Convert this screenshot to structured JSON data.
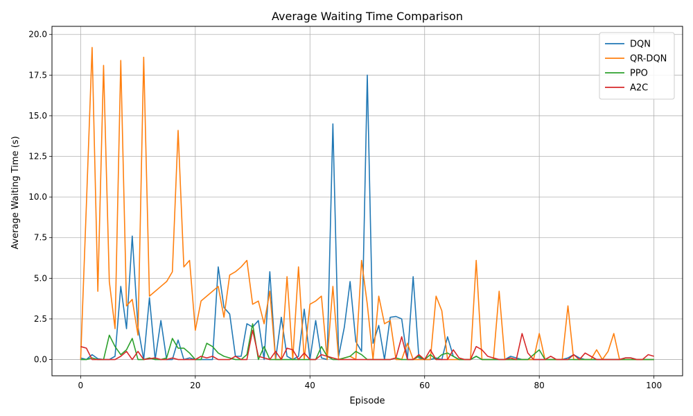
{
  "chart_data": {
    "type": "line",
    "title": "Average Waiting Time Comparison",
    "xlabel": "Episode",
    "ylabel": "Average Waiting Time (s)",
    "xlim": [
      -5,
      105
    ],
    "ylim": [
      -1.0,
      20.5
    ],
    "xticks": [
      0,
      20,
      40,
      60,
      80,
      100
    ],
    "yticks": [
      0.0,
      2.5,
      5.0,
      7.5,
      10.0,
      12.5,
      15.0,
      17.5,
      20.0
    ],
    "xtick_labels": [
      "0",
      "20",
      "40",
      "60",
      "80",
      "100"
    ],
    "ytick_labels": [
      "0.0",
      "2.5",
      "5.0",
      "7.5",
      "10.0",
      "12.5",
      "15.0",
      "17.5",
      "20.0"
    ],
    "grid": true,
    "legend_position": "top-right",
    "x": [
      0,
      1,
      2,
      3,
      4,
      5,
      6,
      7,
      8,
      9,
      10,
      11,
      12,
      13,
      14,
      15,
      16,
      17,
      18,
      19,
      20,
      21,
      22,
      23,
      24,
      25,
      26,
      27,
      28,
      29,
      30,
      31,
      32,
      33,
      34,
      35,
      36,
      37,
      38,
      39,
      40,
      41,
      42,
      43,
      44,
      45,
      46,
      47,
      48,
      49,
      50,
      51,
      52,
      53,
      54,
      55,
      56,
      57,
      58,
      59,
      60,
      61,
      62,
      63,
      64,
      65,
      66,
      67,
      68,
      69,
      70,
      71,
      72,
      73,
      74,
      75,
      76,
      77,
      78,
      79,
      80,
      81,
      82,
      83,
      84,
      85,
      86,
      87,
      88,
      89,
      90,
      91,
      92,
      93,
      94,
      95,
      96,
      97,
      98,
      99,
      100
    ],
    "series": [
      {
        "name": "DQN",
        "color": "#1f77b4",
        "values": [
          0.1,
          0,
          0.3,
          0.05,
          0,
          0,
          0.2,
          4.5,
          1.9,
          7.6,
          2.0,
          0,
          3.8,
          0,
          2.4,
          0,
          0,
          1.2,
          0,
          0.1,
          0,
          0,
          0,
          0,
          5.7,
          3.2,
          2.8,
          0.2,
          0.2,
          2.2,
          2.0,
          2.4,
          0,
          5.4,
          0,
          2.6,
          0.2,
          0,
          0.2,
          3.1,
          0,
          2.4,
          0.1,
          0,
          14.5,
          0.2,
          2.0,
          4.8,
          1.1,
          0.5,
          17.5,
          1.0,
          2.1,
          0,
          2.6,
          2.65,
          2.5,
          0,
          5.1,
          0.1,
          0,
          0,
          0.1,
          0,
          1.4,
          0.2,
          0,
          0,
          0,
          0.2,
          0,
          0,
          0,
          0,
          0,
          0.2,
          0.1,
          0,
          0,
          0,
          0,
          0,
          0,
          0,
          0,
          0.1,
          0.3,
          0.1,
          0,
          0,
          0,
          0,
          0,
          0,
          0,
          0.1,
          0.1,
          0,
          0,
          0,
          0
        ]
      },
      {
        "name": "QR-DQN",
        "color": "#ff7f0e",
        "values": [
          0,
          9.5,
          19.2,
          4.2,
          18.1,
          4.8,
          1.9,
          18.4,
          3.3,
          3.7,
          1.5,
          18.6,
          3.9,
          4.2,
          4.5,
          4.8,
          5.4,
          14.1,
          5.7,
          6.1,
          1.8,
          3.6,
          3.9,
          4.2,
          4.5,
          2.6,
          5.2,
          5.4,
          5.7,
          6.1,
          3.4,
          3.6,
          2.2,
          4.2,
          0,
          0,
          5.1,
          0,
          5.7,
          0,
          3.4,
          3.6,
          3.9,
          0,
          4.5,
          0,
          0.1,
          0.2,
          0,
          6.1,
          3.4,
          0,
          3.9,
          2.2,
          2.4,
          0,
          0,
          1.0,
          0,
          0,
          0,
          0,
          3.9,
          3.0,
          0,
          0,
          0,
          0,
          0,
          6.1,
          0,
          0,
          0,
          4.2,
          0,
          0,
          0,
          0,
          0,
          0,
          1.6,
          0,
          0,
          0,
          0,
          3.3,
          0,
          0,
          0,
          0,
          0.6,
          0,
          0.5,
          1.6,
          0,
          0,
          0,
          0,
          0,
          0,
          0
        ]
      },
      {
        "name": "PPO",
        "color": "#2ca02c",
        "values": [
          0,
          0,
          0.1,
          0,
          0,
          1.5,
          0.8,
          0.3,
          0.6,
          1.3,
          0,
          0,
          0.1,
          0,
          0,
          0.1,
          1.3,
          0.7,
          0.7,
          0.4,
          0,
          0,
          1.0,
          0.8,
          0.4,
          0.2,
          0.1,
          0,
          0,
          0.3,
          2.2,
          0,
          0.8,
          0,
          0,
          0,
          0,
          0,
          0,
          0,
          0,
          0,
          0.8,
          0.2,
          0,
          0,
          0.1,
          0.2,
          0.5,
          0.3,
          0,
          0,
          0,
          0,
          0,
          0.1,
          0,
          0,
          0,
          0.2,
          0,
          0.3,
          0,
          0.3,
          0.4,
          0.2,
          0,
          0,
          0,
          0.2,
          0,
          0,
          0,
          0,
          0,
          0,
          0,
          0,
          0,
          0.3,
          0.6,
          0,
          0,
          0,
          0,
          0,
          0,
          0,
          0,
          0,
          0,
          0,
          0,
          0,
          0,
          0,
          0,
          0,
          0,
          0,
          0
        ]
      },
      {
        "name": "A2C",
        "color": "#d62728",
        "values": [
          0.8,
          0.7,
          0,
          0,
          0,
          0,
          0,
          0.2,
          0.5,
          0,
          0.5,
          0,
          0.05,
          0.1,
          0,
          0,
          0.1,
          0,
          0,
          0,
          0,
          0.2,
          0.1,
          0.2,
          0,
          0,
          0,
          0.2,
          0,
          0,
          1.8,
          0.2,
          0.1,
          0,
          0.5,
          0,
          0.7,
          0.6,
          0,
          0.4,
          0,
          0,
          0.3,
          0.2,
          0.1,
          0,
          0,
          0,
          0,
          0,
          0,
          0,
          0,
          0,
          0,
          0.1,
          1.4,
          0,
          0,
          0.3,
          0,
          0.6,
          0,
          0,
          0,
          0.6,
          0.1,
          0,
          0,
          0.8,
          0.6,
          0.2,
          0.1,
          0,
          0,
          0.1,
          0,
          1.6,
          0.4,
          0,
          0,
          0,
          0.2,
          0,
          0,
          0,
          0.3,
          0,
          0.4,
          0.2,
          0,
          0,
          0,
          0,
          0,
          0.1,
          0.1,
          0,
          0,
          0.3,
          0.2
        ]
      }
    ]
  }
}
